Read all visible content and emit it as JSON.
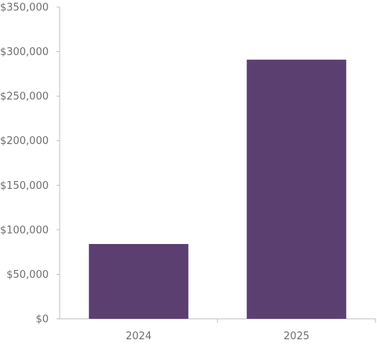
{
  "chart_data": {
    "type": "bar",
    "title": "",
    "xlabel": "",
    "ylabel": "",
    "categories": [
      "2024",
      "2025"
    ],
    "values": [
      84000,
      291000
    ],
    "ylim": [
      0,
      350000
    ],
    "yticks": [
      0,
      50000,
      100000,
      150000,
      200000,
      250000,
      300000,
      350000
    ],
    "ytick_labels": [
      "$0",
      "$50,000",
      "$100,000",
      "$150,000",
      "$200,000",
      "$250,000",
      "$300,000",
      "$350,000"
    ],
    "grid": false,
    "legend": "none",
    "bar_color": "#5b3f71"
  }
}
